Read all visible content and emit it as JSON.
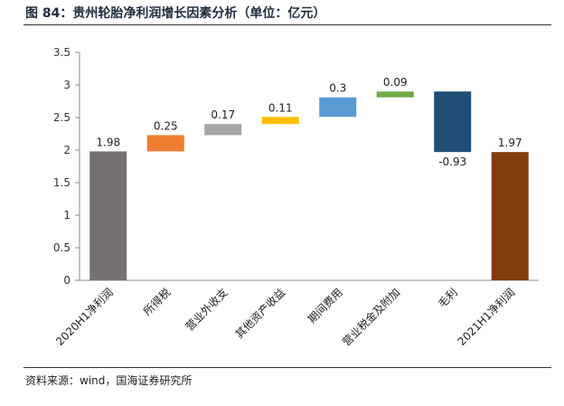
{
  "header": {
    "title": "图 84：贵州轮胎净利润增长因素分析（单位：亿元）"
  },
  "footer": {
    "source": "资料来源：wind，国海证券研究所"
  },
  "chart_data": {
    "type": "bar",
    "subtype": "waterfall",
    "categories": [
      "2020H1净利润",
      "所得税",
      "营业外收支",
      "其他资产收益",
      "期间费用",
      "营业税金及附加",
      "毛利",
      "2021H1净利润"
    ],
    "values": [
      1.98,
      0.25,
      0.17,
      0.11,
      0.3,
      0.09,
      -0.93,
      1.97
    ],
    "value_labels": [
      "1.98",
      "0.25",
      "0.17",
      "0.11",
      "0.3",
      "0.09",
      "-0.93",
      "1.97"
    ],
    "bar_kind": [
      "total",
      "delta",
      "delta",
      "delta",
      "delta",
      "delta",
      "delta",
      "total"
    ],
    "colors": [
      "#767171",
      "#ED7D31",
      "#A5A5A5",
      "#FFC000",
      "#5B9BD5",
      "#70AD47",
      "#1F4E79",
      "#843C0C"
    ],
    "y_ticks": [
      "0",
      "0.5",
      "1",
      "1.5",
      "2",
      "2.5",
      "3",
      "3.5"
    ],
    "ylim": [
      0,
      3.5
    ],
    "grid": false,
    "legend": "none"
  }
}
